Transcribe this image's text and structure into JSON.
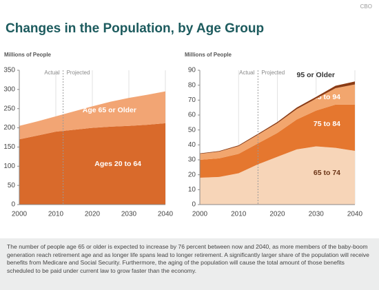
{
  "source": "CBO",
  "title": "Changes in the Population, by Age Group",
  "chart_data": [
    {
      "type": "area",
      "stacked": true,
      "y_label": "Millions of People",
      "actual_label": "Actual",
      "projected_label": "Projected",
      "projection_start": 2012,
      "x": [
        2000,
        2005,
        2010,
        2015,
        2020,
        2025,
        2030,
        2035,
        2040
      ],
      "xlim": [
        2000,
        2040
      ],
      "xticks": [
        2000,
        2010,
        2020,
        2030,
        2040
      ],
      "ylim": [
        0,
        350
      ],
      "yticks": [
        0,
        50,
        100,
        150,
        200,
        250,
        300,
        350
      ],
      "grid": "x",
      "series": [
        {
          "name": "Ages 20 to 64",
          "color": "#d96a2b",
          "values": [
            170,
            180,
            190,
            195,
            200,
            203,
            205,
            208,
            212
          ]
        },
        {
          "name": "Age 65 or Older",
          "color": "#f2a574",
          "values": [
            35,
            37,
            40,
            48,
            56,
            65,
            73,
            78,
            83
          ]
        }
      ]
    },
    {
      "type": "area",
      "stacked": true,
      "y_label": "Millions of People",
      "actual_label": "Actual",
      "projected_label": "Projected",
      "projection_start": 2015,
      "x": [
        2000,
        2005,
        2010,
        2015,
        2020,
        2025,
        2030,
        2035,
        2040
      ],
      "xlim": [
        2000,
        2040
      ],
      "xticks": [
        2000,
        2010,
        2020,
        2030,
        2040
      ],
      "ylim": [
        0,
        90
      ],
      "yticks": [
        0,
        10,
        20,
        30,
        40,
        50,
        60,
        70,
        80,
        90
      ],
      "grid": "x",
      "series": [
        {
          "name": "65 to 74",
          "color": "#f7d5b8",
          "values": [
            18,
            18.5,
            21,
            27,
            32,
            37,
            39,
            38,
            36
          ]
        },
        {
          "name": "75 to 84",
          "color": "#e5772f",
          "values": [
            12,
            12.5,
            13,
            14,
            16,
            20,
            24,
            29,
            31
          ]
        },
        {
          "name": "85 to 94",
          "color": "#f2a66e",
          "values": [
            4,
            4.5,
            5.2,
            5.8,
            6.5,
            7,
            8,
            11,
            13.5
          ]
        },
        {
          "name": "95 or Older",
          "color": "#8a3b14",
          "values": [
            0.3,
            0.4,
            0.5,
            0.6,
            0.8,
            1,
            1.2,
            1.6,
            2
          ]
        }
      ]
    }
  ],
  "note": "The number of people age 65 or older is expected to increase by 76 percent between now and 2040, as more members of the baby-boom generation reach retirement age and as longer life spans lead to longer retirement. A significantly larger share of the population will receive benefits from Medicare and Social Security. Furthermore, the aging of the population will cause the total amount of those benefits scheduled to be paid under current law to grow faster than the economy."
}
